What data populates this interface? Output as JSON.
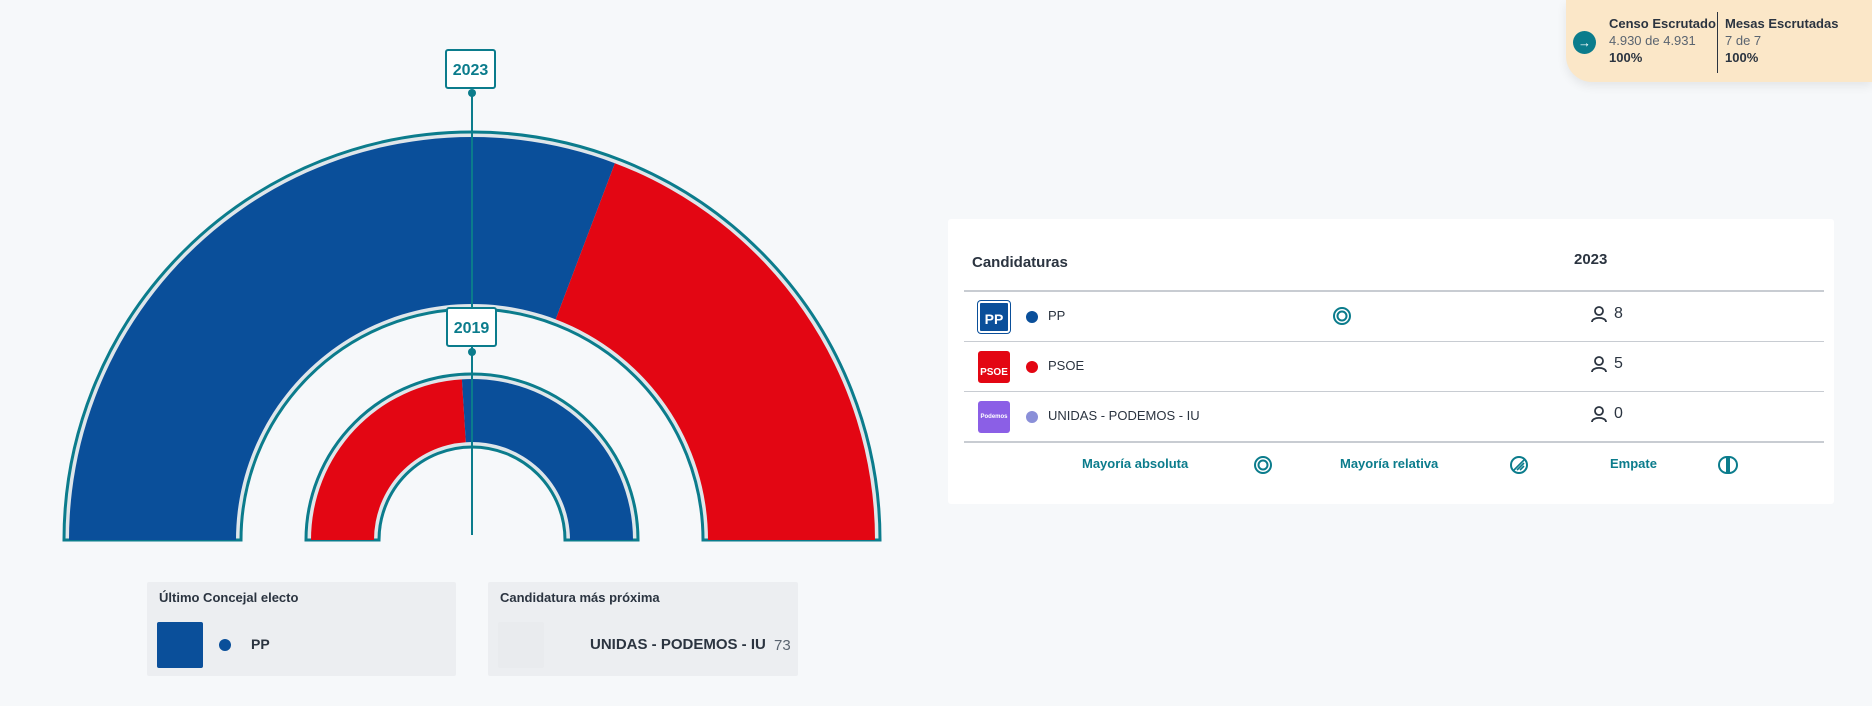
{
  "status": {
    "census": {
      "title": "Censo Escrutado",
      "detail": "4.930 de 4.931",
      "percent": "100%"
    },
    "tables": {
      "title": "Mesas Escrutadas",
      "detail": "7 de 7",
      "percent": "100%"
    },
    "toggle_icon": "arrow-right-icon"
  },
  "hemicycle": {
    "outer_year": "2023",
    "inner_year": "2019",
    "colors": {
      "PP": "#0a4f9a",
      "PSOE": "#e30613"
    },
    "outer_split": {
      "PP": 8,
      "PSOE": 5
    },
    "inner_split": {
      "PSOE": 0.48,
      "PP": 0.52
    }
  },
  "cards": {
    "elected": {
      "title": "Último Concejal electo",
      "party": "PP",
      "color": "#0a4f9a"
    },
    "next": {
      "title": "Candidatura más próxima",
      "party": "UNIDAS - PODEMOS - IU",
      "votes": "73"
    }
  },
  "table": {
    "header_candidates": "Candidaturas",
    "header_year": "2023",
    "rows": [
      {
        "logo": "PP",
        "name": "PP",
        "color": "#0a4f9a",
        "seats": "8",
        "majority": "absolute"
      },
      {
        "logo": "PSOE",
        "name": "PSOE",
        "color": "#e30613",
        "seats": "5",
        "majority": ""
      },
      {
        "logo": "Podemos",
        "name": "UNIDAS - PODEMOS - IU",
        "color": "#8a8fd8",
        "seats": "0",
        "majority": ""
      }
    ],
    "legend": {
      "absolute": "Mayoría absoluta",
      "relative": "Mayoría relativa",
      "tie": "Empate"
    }
  }
}
